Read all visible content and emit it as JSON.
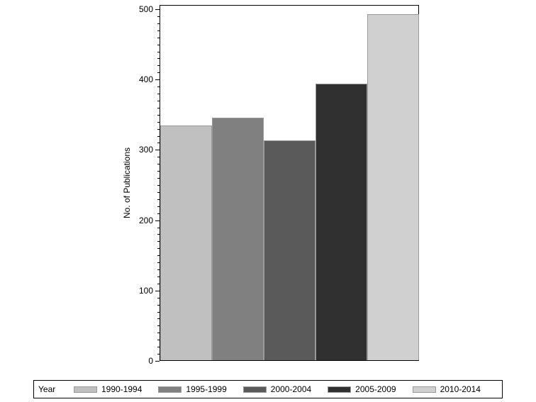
{
  "chart_data": {
    "type": "bar",
    "title": "",
    "xlabel": "",
    "ylabel": "No. of Publications",
    "ylim": [
      0,
      500
    ],
    "yticks": [
      0,
      100,
      200,
      300,
      400,
      500
    ],
    "ytick_labels": [
      "0",
      "100",
      "200",
      "300",
      "400",
      "500"
    ],
    "minor_tick_step": 10,
    "grid": false,
    "legend_position": "bottom",
    "legend_title": "Year",
    "categories": [
      "1990-1994",
      "1995-1999",
      "2000-2004",
      "2005-2009",
      "2010-2014"
    ],
    "values": [
      334,
      345,
      313,
      393,
      492
    ],
    "colors": [
      "#c0c0c0",
      "#808080",
      "#5a5a5a",
      "#303030",
      "#d0d0d0"
    ]
  },
  "axis": {
    "ylabel": "No. of Publications",
    "ticks": [
      "0",
      "100",
      "200",
      "300",
      "400",
      "500"
    ]
  },
  "legend": {
    "title": "Year",
    "items": [
      {
        "label": "1990-1994",
        "color": "#c0c0c0"
      },
      {
        "label": "1995-1999",
        "color": "#808080"
      },
      {
        "label": "2000-2004",
        "color": "#5a5a5a"
      },
      {
        "label": "2005-2009",
        "color": "#303030"
      },
      {
        "label": "2010-2014",
        "color": "#d0d0d0"
      }
    ]
  }
}
